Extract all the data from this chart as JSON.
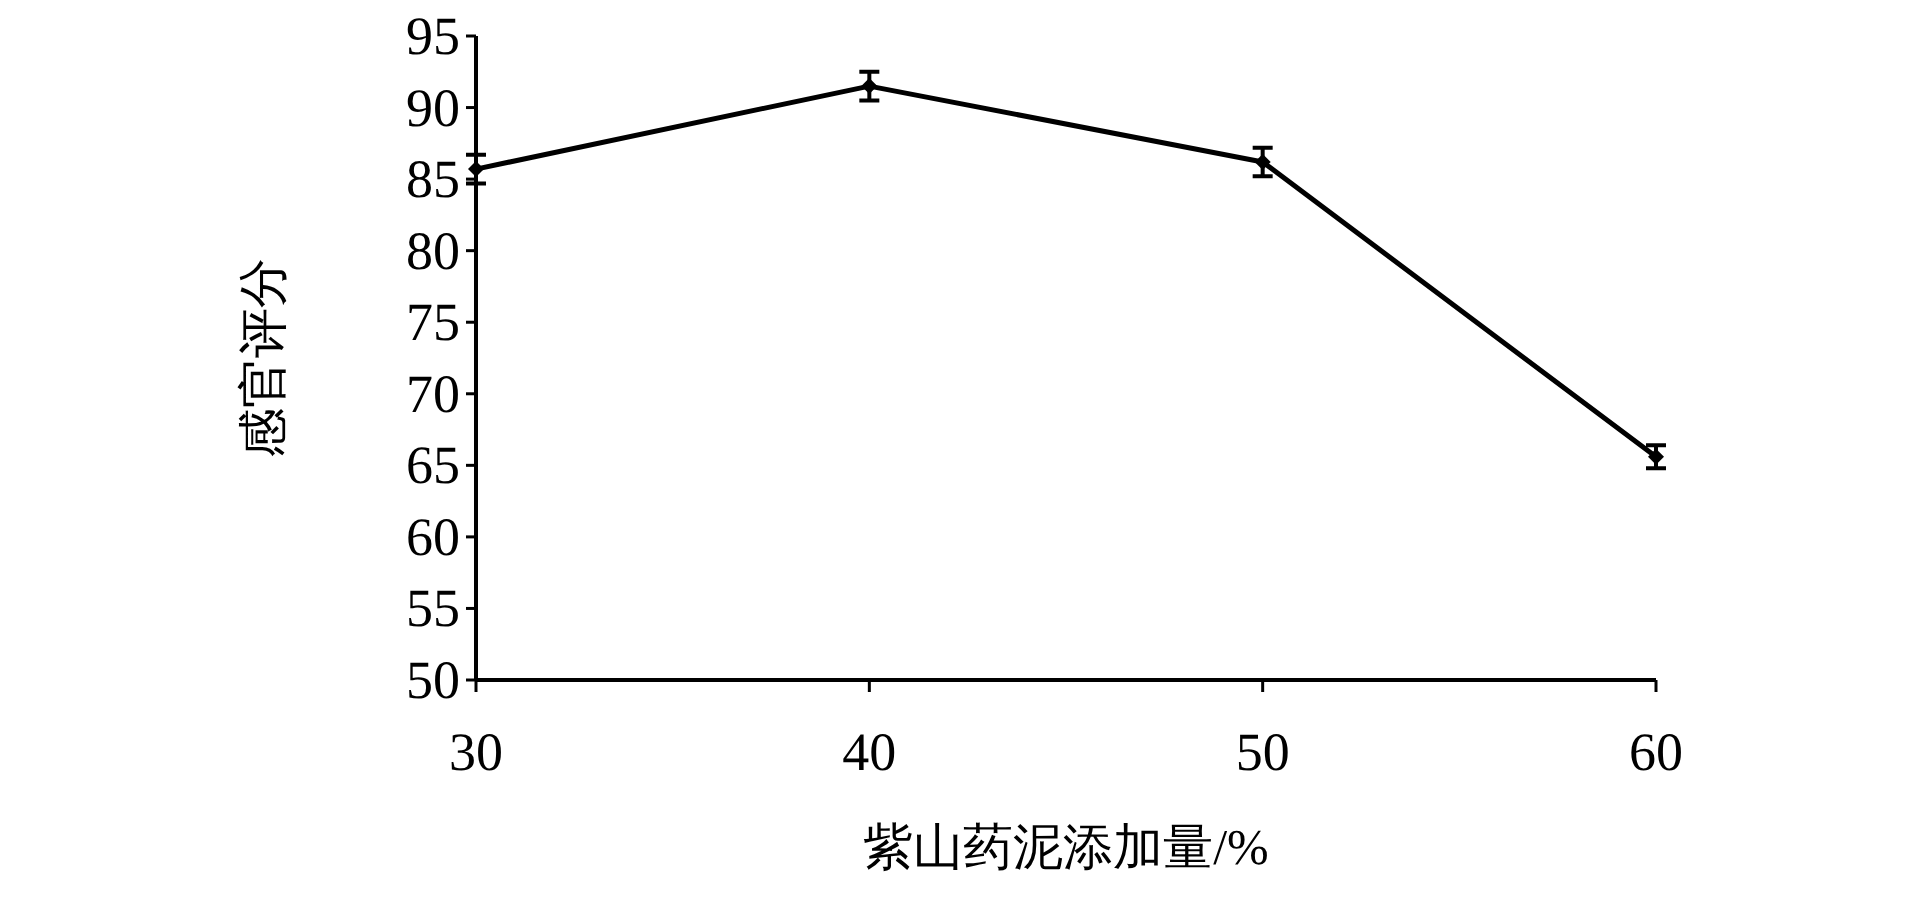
{
  "chart_data": {
    "type": "line",
    "xlabel": "紫山药泥添加量/%",
    "ylabel": "感官评分",
    "x": [
      30,
      40,
      50,
      60
    ],
    "series": [
      {
        "color": "#000000",
        "values": [
          85.7,
          91.5,
          86.2,
          65.6
        ],
        "errors": [
          1,
          1,
          1,
          0.8
        ]
      }
    ],
    "xlim": [
      30,
      60
    ],
    "xticks": [
      30,
      40,
      50,
      60
    ],
    "ylim": [
      50,
      95
    ],
    "yticks": [
      50,
      55,
      60,
      65,
      70,
      75,
      80,
      85,
      90,
      95
    ],
    "marker": "diamond",
    "line_style": "solid"
  }
}
